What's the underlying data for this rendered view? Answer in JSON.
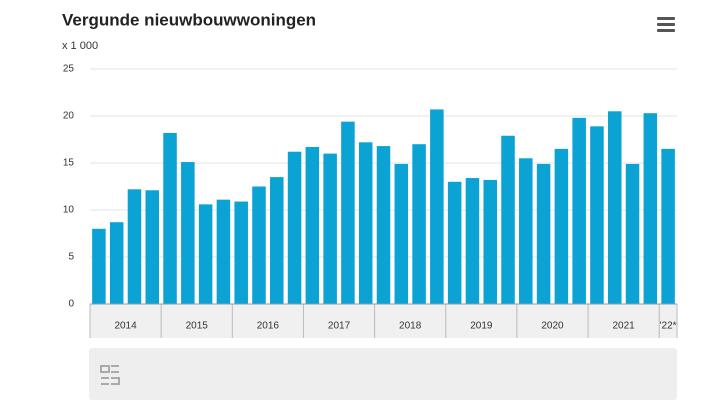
{
  "chart_data": {
    "type": "bar",
    "title": "Vergunde nieuwbouwwoningen",
    "unit_label": "x 1 000",
    "categories": [
      null,
      null,
      null,
      null,
      null,
      null,
      null,
      null,
      null,
      null,
      null,
      null,
      null,
      null,
      null,
      null,
      null,
      null,
      null,
      null,
      null,
      null,
      null,
      null,
      null,
      null,
      null,
      null,
      null,
      null,
      null,
      null,
      null
    ],
    "values": [
      8.0,
      8.7,
      12.2,
      12.1,
      18.2,
      15.1,
      10.6,
      11.1,
      10.9,
      12.5,
      13.5,
      16.2,
      16.7,
      16.0,
      19.4,
      17.2,
      16.8,
      14.9,
      17.0,
      20.7,
      13.0,
      13.4,
      13.2,
      17.9,
      15.5,
      14.9,
      16.5,
      19.8,
      18.9,
      20.5,
      14.9,
      20.3,
      16.5
    ],
    "year_labels": [
      "2014",
      "2015",
      "2016",
      "2017",
      "2018",
      "2019",
      "2020",
      "2021",
      "'22*"
    ],
    "color": "#0ba3d3",
    "ylim": [
      0,
      25
    ],
    "yticks": [
      0,
      5,
      10,
      15,
      20,
      25
    ],
    "grid": true
  }
}
